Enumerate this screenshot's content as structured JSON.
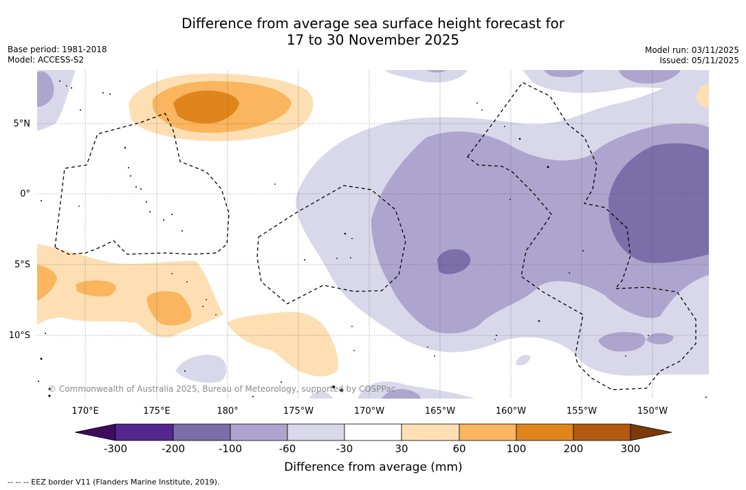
{
  "header": {
    "title_line1": "Difference from average sea surface height forecast for",
    "title_line2": "17 to 30 November 2025",
    "base_period": "Base period: 1981-2018",
    "model": "Model: ACCESS-S2",
    "model_run": "Model run: 03/11/2025",
    "issued": "Issued: 05/11/2025"
  },
  "map": {
    "lat_labels": [
      "5°N",
      "0°",
      "5°S",
      "10°S"
    ],
    "lon_labels": [
      "170°E",
      "175°E",
      "180°",
      "175°W",
      "170°W",
      "165°W",
      "160°W",
      "155°W",
      "150°W"
    ],
    "copyright": "© Commonwealth of Australia 2025, Bureau of Meteorology, supported by COSPPac"
  },
  "colorbar": {
    "ticks": [
      "-300",
      "-200",
      "-100",
      "-60",
      "-30",
      "30",
      "60",
      "100",
      "200",
      "300"
    ],
    "colors": [
      "#3f0b5c",
      "#54278f",
      "#7b6ea9",
      "#ada5cd",
      "#d9d8ea",
      "#ffffff",
      "#fddfb3",
      "#fab55e",
      "#e0841c",
      "#b25a0f",
      "#7a3b08"
    ],
    "label": "Difference from average (mm)"
  },
  "footer": {
    "legend": "-- -- -- EEZ border V11 (Flanders Marine Institute, 2019)."
  }
}
